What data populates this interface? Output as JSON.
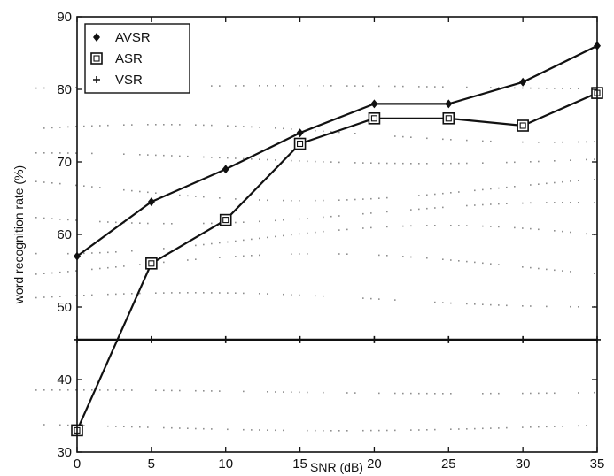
{
  "chart_data": {
    "type": "line",
    "title": "",
    "xlabel": "SNR (dB)",
    "ylabel": "word recognition rate (%)",
    "xlim": [
      0,
      35
    ],
    "ylim": [
      30,
      90
    ],
    "xticks": [
      0,
      5,
      10,
      15,
      20,
      25,
      30,
      35
    ],
    "yticks": [
      30,
      40,
      50,
      60,
      70,
      80,
      90
    ],
    "grid": false,
    "legend": "top-left",
    "x": [
      0,
      5,
      10,
      15,
      20,
      25,
      30,
      35
    ],
    "series": [
      {
        "name": "AVSR",
        "marker": "diamond",
        "values": [
          57,
          64.5,
          69,
          74,
          78,
          78,
          81,
          86
        ]
      },
      {
        "name": "ASR",
        "marker": "square",
        "values": [
          33,
          56,
          62,
          72.5,
          76,
          76,
          75,
          79.5
        ]
      },
      {
        "name": "VSR",
        "marker": "plus",
        "values": [
          45.5,
          45.5,
          45.5,
          45.5,
          45.5,
          45.5,
          45.5,
          45.5
        ]
      }
    ],
    "colors": {
      "line": "#111111",
      "frame": "#111111",
      "background": "#ffffff",
      "speckle": "#333333"
    }
  }
}
